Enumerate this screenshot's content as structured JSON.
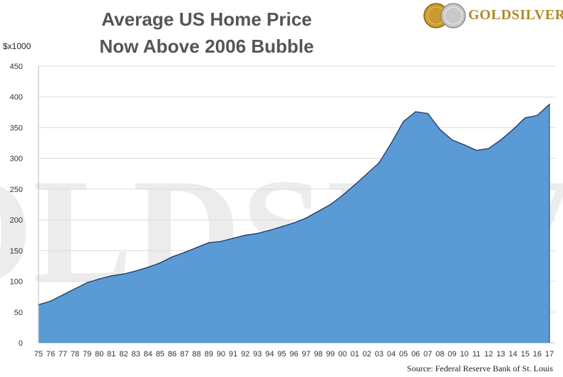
{
  "title_lines": [
    "Average US Home Price",
    "Now Above 2006 Bubble"
  ],
  "logo": {
    "brand": "GOLDSILVER",
    "icon": "gold-silver-coins-icon",
    "gold_color": "#c99a2e",
    "silver_color": "#b9b9b9"
  },
  "watermark": "GOLDSILVER",
  "source": "Source: Federal Reserve Bank of St. Louis",
  "chart_data": {
    "type": "area",
    "title": "Average US Home Price Now Above 2006 Bubble",
    "ylabel": "$x1000",
    "xlabel": "",
    "ylim": [
      0,
      450
    ],
    "yticks": [
      0,
      50,
      100,
      150,
      200,
      250,
      300,
      350,
      400,
      450
    ],
    "grid": true,
    "fill_color": "#5b9bd5",
    "line_color": "#1f3864",
    "x": [
      "75",
      "76",
      "77",
      "78",
      "79",
      "80",
      "81",
      "82",
      "83",
      "84",
      "85",
      "86",
      "87",
      "88",
      "89",
      "90",
      "91",
      "92",
      "93",
      "94",
      "95",
      "96",
      "97",
      "98",
      "99",
      "00",
      "01",
      "02",
      "03",
      "04",
      "05",
      "06",
      "07",
      "08",
      "09",
      "10",
      "11",
      "12",
      "13",
      "14",
      "15",
      "16",
      "17"
    ],
    "values": [
      62,
      68,
      78,
      88,
      98,
      104,
      109,
      112,
      117,
      123,
      130,
      140,
      147,
      155,
      163,
      165,
      170,
      175,
      178,
      183,
      189,
      195,
      203,
      214,
      225,
      240,
      257,
      275,
      293,
      325,
      360,
      376,
      373,
      347,
      330,
      322,
      313,
      316,
      330,
      347,
      366,
      370,
      388
    ]
  }
}
